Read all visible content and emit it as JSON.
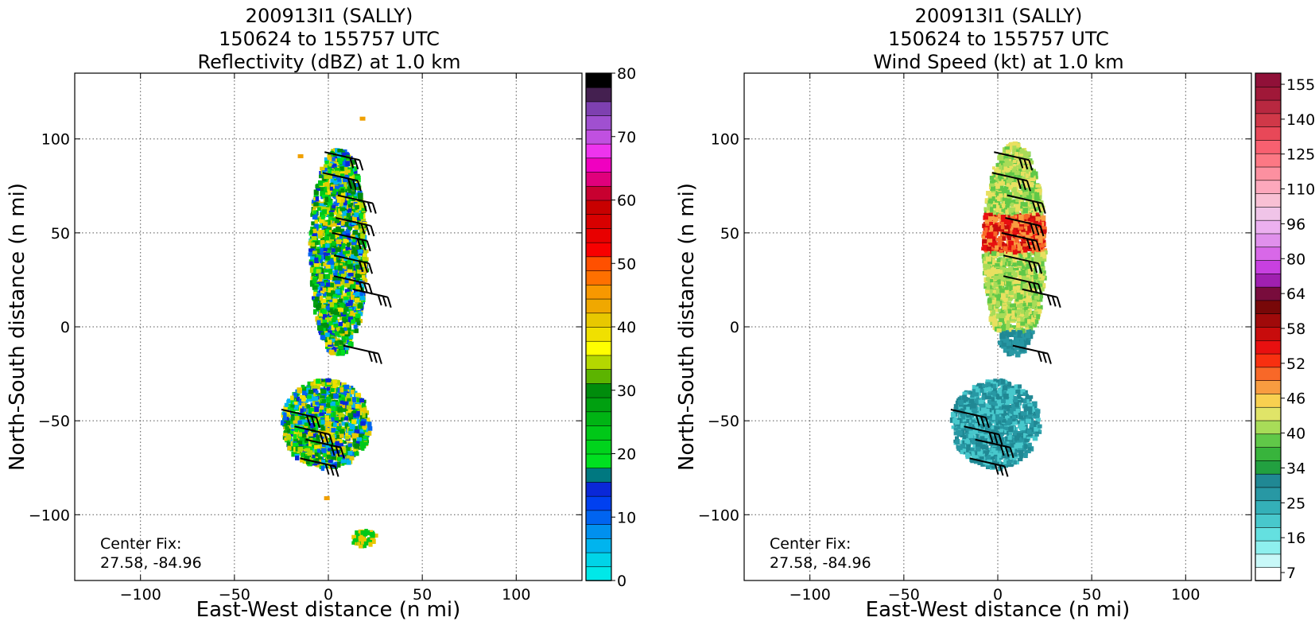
{
  "panels": [
    {
      "title_lines": [
        "200913I1 (SALLY)",
        "150624 to 155757 UTC",
        "Reflectivity (dBZ) at 1.0 km"
      ],
      "xlabel": "East-West distance (n mi)",
      "ylabel": "North-South distance (n mi)",
      "center_fix_label": "Center Fix:",
      "center_fix_value": "27.58, -84.96",
      "colorbar_ticks": [
        "0",
        "10",
        "20",
        "30",
        "40",
        "50",
        "60",
        "70",
        "80"
      ],
      "colorbar_colors": [
        "#00e8e8",
        "#00d4e8",
        "#00b4ee",
        "#0090ee",
        "#0064f0",
        "#0040f0",
        "#0a28d8",
        "#007880",
        "#00e020",
        "#00d41c",
        "#00c818",
        "#00b414",
        "#00a010",
        "#008c0c",
        "#5cb400",
        "#b4d800",
        "#ffff00",
        "#f0e000",
        "#e8c800",
        "#f0a800",
        "#f89800",
        "#ff7000",
        "#ff5000",
        "#f80000",
        "#e80000",
        "#d80000",
        "#c80000",
        "#c80030",
        "#e0007c",
        "#f000c0",
        "#ee34ee",
        "#c050e0",
        "#a050d0",
        "#7e40b0",
        "#442050",
        "#000000"
      ],
      "radar_colors": [
        "#00c818",
        "#00e020",
        "#00a010",
        "#008c0c",
        "#0a28d8",
        "#0064f0",
        "#00b4ee",
        "#e8c800",
        "#f0e000",
        "#b4d800"
      ],
      "scatter_color": "#f0a000"
    },
    {
      "title_lines": [
        "200913I1 (SALLY)",
        "150624 to 155757 UTC",
        "Wind Speed (kt) at 1.0 km"
      ],
      "xlabel": "East-West distance (n mi)",
      "ylabel": "North-South distance (n mi)",
      "center_fix_label": "Center Fix:",
      "center_fix_value": "27.58, -84.96",
      "colorbar_ticks": [
        "7",
        "16",
        "25",
        "34",
        "40",
        "46",
        "52",
        "58",
        "64",
        "80",
        "96",
        "110",
        "125",
        "140",
        "155"
      ],
      "colorbar_colors": [
        "#ffffff",
        "#c8f8f8",
        "#8ef0ee",
        "#64e0e0",
        "#48c8cc",
        "#34b0b8",
        "#2898a4",
        "#208894",
        "#22a040",
        "#38b43c",
        "#60c848",
        "#a8dc58",
        "#e0e468",
        "#f8d050",
        "#f89c40",
        "#f86828",
        "#f83010",
        "#e81010",
        "#c80c0c",
        "#a00a0a",
        "#780808",
        "#780c3c",
        "#a020b0",
        "#c840e0",
        "#d868e8",
        "#e090ec",
        "#ecb0f0",
        "#f0c4e8",
        "#f8c0d4",
        "#fca8bc",
        "#fc90a0",
        "#fc7884",
        "#f86070",
        "#e84858",
        "#d03848",
        "#b82840",
        "#a01838",
        "#901038"
      ],
      "radar_colors": [
        "#e8e060",
        "#a8dc58",
        "#60c848",
        "#f89c40",
        "#f86828",
        "#e81010",
        "#c80c0c",
        "#780808",
        "#2898a4",
        "#208894",
        "#48c8cc"
      ],
      "scatter_color": "#f89c40"
    }
  ],
  "chart_data": [
    {
      "type": "heatmap",
      "title": "200913I1 (SALLY) / 150624 to 155757 UTC / Reflectivity (dBZ) at 1.0 km",
      "xlabel": "East-West distance (n mi)",
      "ylabel": "North-South distance (n mi)",
      "xlim": [
        -135,
        135
      ],
      "ylim": [
        -135,
        135
      ],
      "xticks": [
        -100,
        -50,
        0,
        50,
        100
      ],
      "yticks": [
        -100,
        -50,
        0,
        50,
        100
      ],
      "grid": true,
      "colorbar": {
        "label": "Reflectivity (dBZ)",
        "range": [
          0,
          80
        ],
        "ticks": [
          0,
          10,
          20,
          30,
          40,
          50,
          60,
          70,
          80
        ]
      },
      "annotation": "Center Fix: 27.58, -84.96",
      "echo_regions": [
        {
          "x_range": [
            -10,
            20
          ],
          "y_range": [
            -15,
            95
          ],
          "dominant": "20-30 dBZ"
        },
        {
          "x_range": [
            -25,
            22
          ],
          "y_range": [
            -75,
            -28
          ],
          "dominant": "20-30 dBZ"
        },
        {
          "x_range": [
            12,
            25
          ],
          "y_range": [
            -117,
            -108
          ],
          "dominant": "20-35 dBZ"
        }
      ],
      "wind_barbs": [
        {
          "x": -2,
          "y": 93
        },
        {
          "x": -3,
          "y": 82
        },
        {
          "x": 5,
          "y": 70
        },
        {
          "x": 4,
          "y": 58
        },
        {
          "x": 2,
          "y": 50
        },
        {
          "x": 3,
          "y": 38
        },
        {
          "x": 3,
          "y": 27
        },
        {
          "x": 13,
          "y": 20
        },
        {
          "x": 8,
          "y": -10
        },
        {
          "x": -25,
          "y": -44
        },
        {
          "x": -18,
          "y": -53
        },
        {
          "x": -12,
          "y": -60
        },
        {
          "x": -15,
          "y": -70
        }
      ]
    },
    {
      "type": "heatmap",
      "title": "200913I1 (SALLY) / 150624 to 155757 UTC / Wind Speed (kt) at 1.0 km",
      "xlabel": "East-West distance (n mi)",
      "ylabel": "North-South distance (n mi)",
      "xlim": [
        -135,
        135
      ],
      "ylim": [
        -135,
        135
      ],
      "xticks": [
        -100,
        -50,
        0,
        50,
        100
      ],
      "yticks": [
        -100,
        -50,
        0,
        50,
        100
      ],
      "grid": true,
      "colorbar": {
        "label": "Wind Speed (kt)",
        "range": [
          7,
          160
        ],
        "ticks": [
          7,
          16,
          25,
          34,
          40,
          46,
          52,
          58,
          64,
          80,
          96,
          110,
          125,
          140,
          155
        ]
      },
      "annotation": "Center Fix: 27.58, -84.96",
      "echo_regions": [
        {
          "x_range": [
            -8,
            25
          ],
          "y_range": [
            -15,
            98
          ],
          "dominant": "40-64 kt"
        },
        {
          "x_range": [
            -25,
            22
          ],
          "y_range": [
            -75,
            -28
          ],
          "dominant": "16-34 kt"
        }
      ],
      "wind_barbs": [
        {
          "x": -2,
          "y": 93
        },
        {
          "x": -3,
          "y": 82
        },
        {
          "x": 5,
          "y": 70
        },
        {
          "x": 4,
          "y": 58
        },
        {
          "x": 2,
          "y": 50
        },
        {
          "x": 3,
          "y": 38
        },
        {
          "x": 3,
          "y": 27
        },
        {
          "x": 13,
          "y": 20
        },
        {
          "x": 8,
          "y": -10
        },
        {
          "x": -25,
          "y": -44
        },
        {
          "x": -18,
          "y": -53
        },
        {
          "x": -12,
          "y": -60
        },
        {
          "x": -15,
          "y": -70
        }
      ]
    }
  ]
}
